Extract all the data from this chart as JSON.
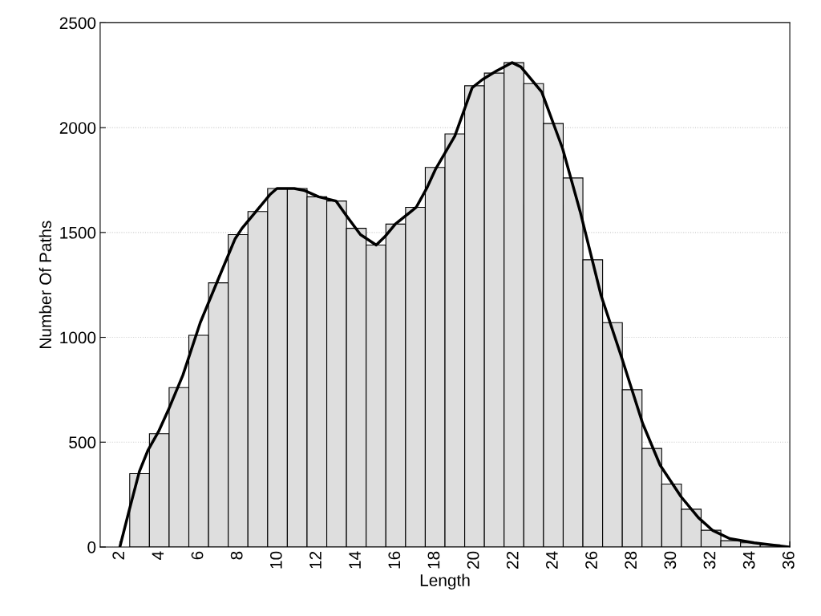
{
  "chart_data": {
    "type": "histogram",
    "xlabel": "Length",
    "ylabel": "Number Of Paths",
    "xlim": [
      1,
      36
    ],
    "xticks": [
      2,
      4,
      6,
      8,
      10,
      12,
      14,
      16,
      18,
      20,
      22,
      24,
      26,
      28,
      30,
      32,
      34,
      36
    ],
    "ylim": [
      0,
      2500
    ],
    "yticks": [
      0,
      500,
      1000,
      1500,
      2000,
      2500
    ],
    "grid": "y",
    "legend": false,
    "series": [
      {
        "type": "histogram",
        "color": "#dedede",
        "bins": [
          2.5,
          3.5,
          4.5,
          5.5,
          6.5,
          7.5,
          8.5,
          9.5,
          10.5,
          11.5,
          12.5,
          13.5,
          14.5,
          15.5,
          16.5,
          17.5,
          18.5,
          19.5,
          20.5,
          21.5,
          22.5,
          23.5,
          24.5,
          25.5,
          26.5,
          27.5,
          28.5,
          29.5,
          30.5,
          31.5,
          32.5,
          33.5,
          34.5,
          35.5
        ],
        "values": [
          350,
          540,
          760,
          1010,
          1260,
          1490,
          1600,
          1710,
          1710,
          1670,
          1650,
          1520,
          1440,
          1540,
          1620,
          1810,
          1970,
          2200,
          2260,
          2310,
          2210,
          2020,
          1760,
          1370,
          1070,
          750,
          470,
          300,
          180,
          80,
          30,
          20,
          10
        ]
      },
      {
        "type": "line",
        "color": "#000000",
        "line_style": "solid",
        "x": [
          2.0,
          2.46,
          2.99,
          3.42,
          3.96,
          4.49,
          5.2,
          6.08,
          6.96,
          7.85,
          8.2,
          8.91,
          9.61,
          9.97,
          10.85,
          11.38,
          12.09,
          12.97,
          13.5,
          14.21,
          15.01,
          15.45,
          15.98,
          17.04,
          17.57,
          18.01,
          19.0,
          19.88,
          20.41,
          21.11,
          21.91,
          22.35,
          23.41,
          24.47,
          25.36,
          26.42,
          27.48,
          28.53,
          29.42,
          30.48,
          31.36,
          32.07,
          32.95,
          34.19,
          35.96
        ],
        "values": [
          0,
          170,
          360,
          460,
          550,
          660,
          820,
          1070,
          1270,
          1470,
          1520,
          1600,
          1680,
          1710,
          1710,
          1700,
          1670,
          1650,
          1580,
          1490,
          1440,
          1480,
          1540,
          1620,
          1710,
          1800,
          1960,
          2190,
          2230,
          2270,
          2310,
          2290,
          2170,
          1900,
          1600,
          1200,
          900,
          590,
          390,
          240,
          140,
          80,
          40,
          20,
          0
        ]
      }
    ]
  }
}
